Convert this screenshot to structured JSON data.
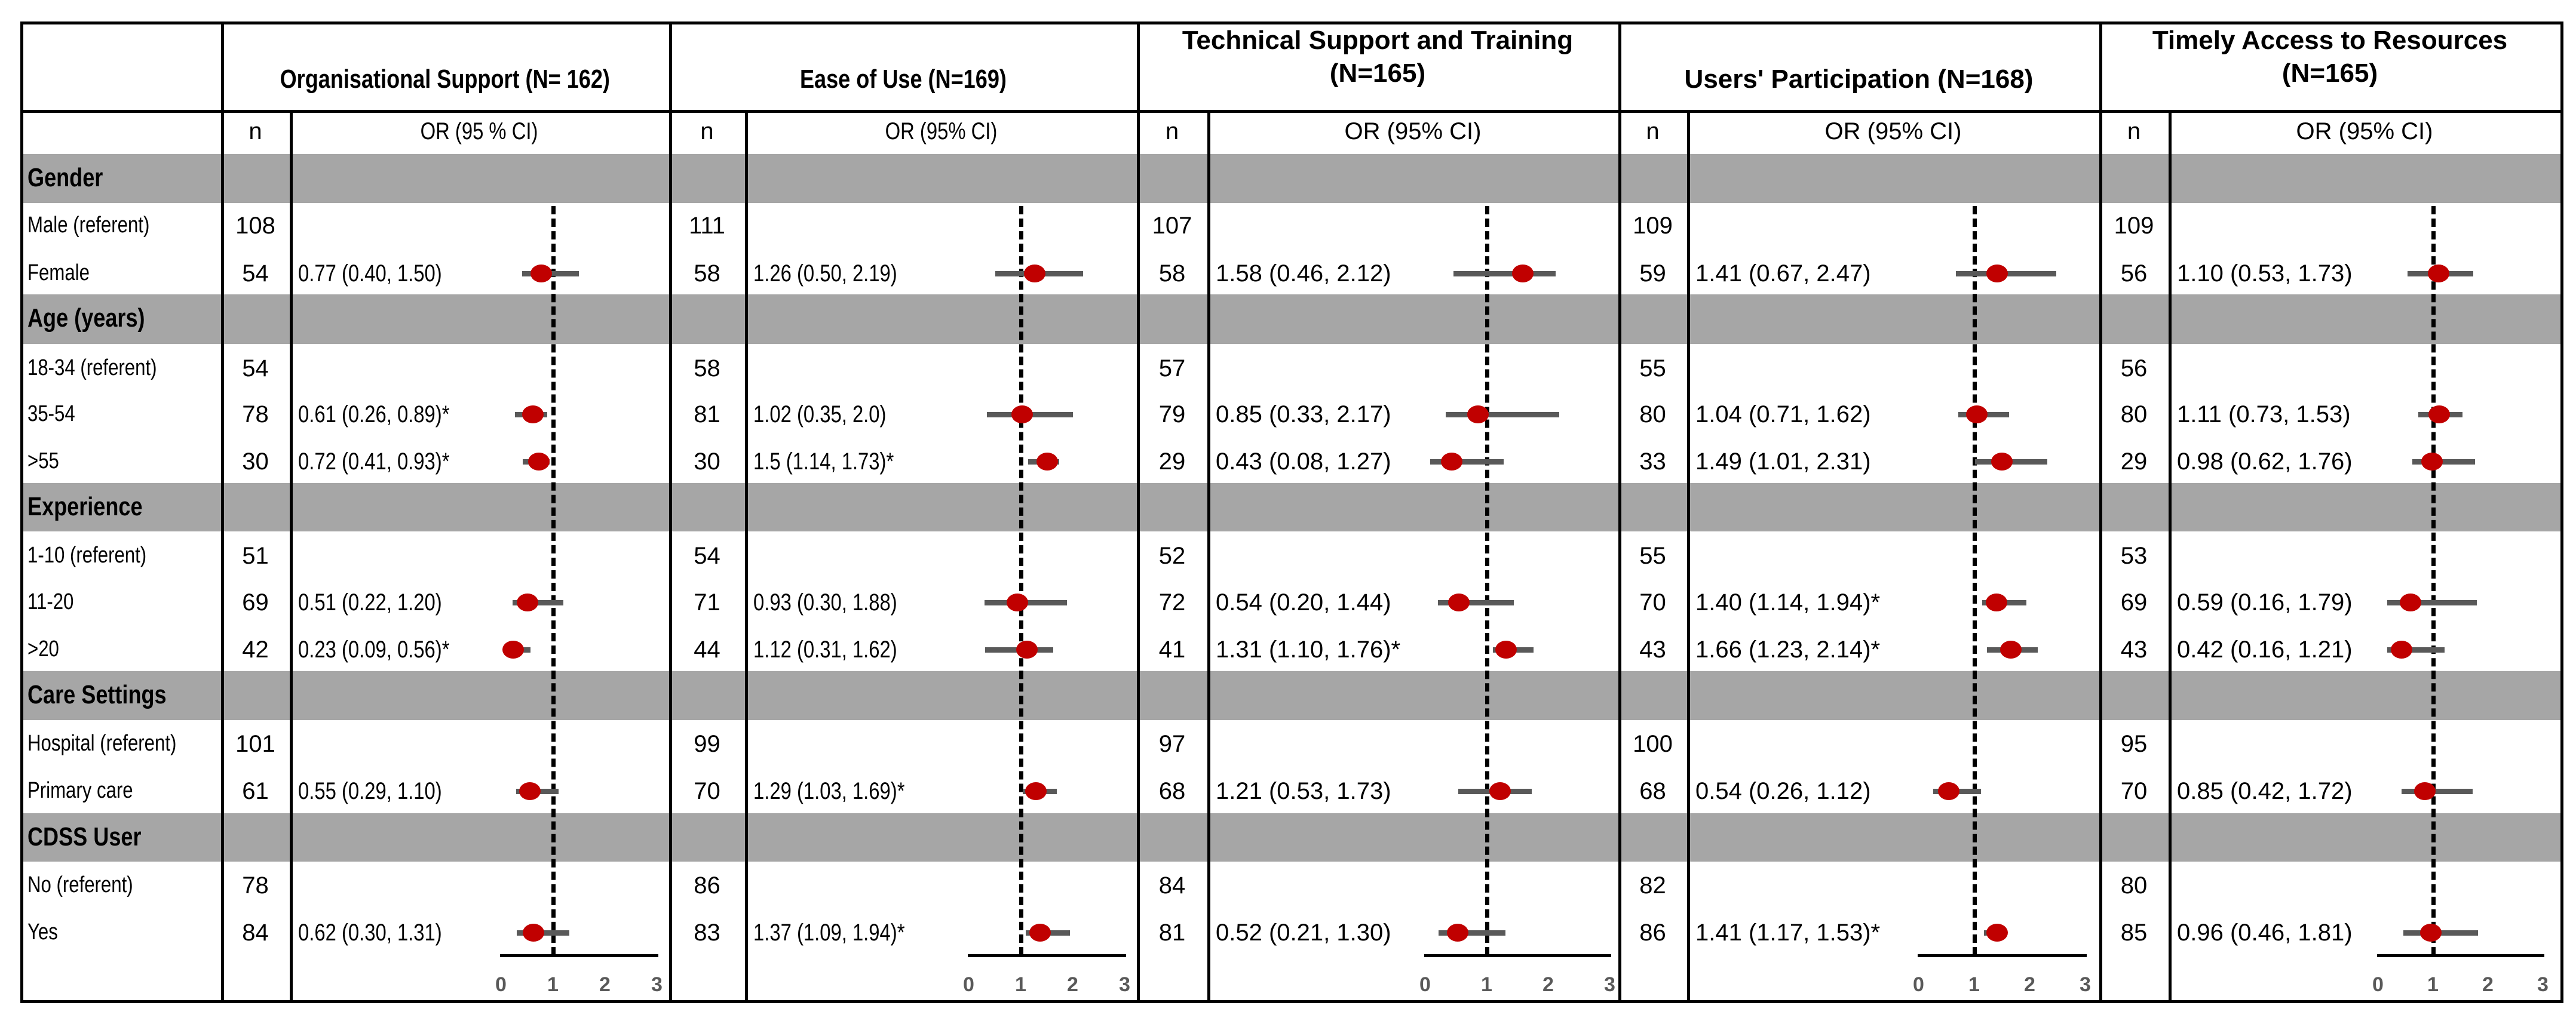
{
  "colors": {
    "band": "#A6A6A6",
    "point": "#C00000",
    "ci_line": "#595959",
    "reference_line": "#000000"
  },
  "row_groups": [
    {
      "label": "Gender",
      "rows": [
        "Male (referent)",
        "Female"
      ]
    },
    {
      "label": "Age (years)",
      "rows": [
        "18-34 (referent)",
        "35-54",
        ">55"
      ]
    },
    {
      "label": "Experience",
      "rows": [
        "1-10 (referent)",
        "11-20",
        ">20"
      ]
    },
    {
      "label": "Care Settings",
      "rows": [
        "Hospital (referent)",
        "Primary care"
      ]
    },
    {
      "label": "CDSS User",
      "rows": [
        "No (referent)",
        "Yes"
      ]
    }
  ],
  "chart_data": {
    "type": "forest",
    "xlim": [
      0,
      3
    ],
    "axis_ticks": [
      "0",
      "1",
      "2",
      "3"
    ],
    "reference_value": 1,
    "grid": false,
    "sections": [
      {
        "title": "Organisational Support (N= 162)",
        "n_header": "n",
        "or_header": "OR (95 % CI)",
        "rows": [
          {
            "n": "108"
          },
          {
            "n": "54",
            "text": "0.77 (0.40, 1.50)",
            "or": 0.77,
            "lo": 0.4,
            "hi": 1.5
          },
          {
            "n": "54"
          },
          {
            "n": "78",
            "text": "0.61 (0.26, 0.89)*",
            "or": 0.61,
            "lo": 0.26,
            "hi": 0.89
          },
          {
            "n": "30",
            "text": "0.72 (0.41, 0.93)*",
            "or": 0.72,
            "lo": 0.41,
            "hi": 0.93
          },
          {
            "n": "51"
          },
          {
            "n": "69",
            "text": "0.51 (0.22, 1.20)",
            "or": 0.51,
            "lo": 0.22,
            "hi": 1.2
          },
          {
            "n": "42",
            "text": "0.23 (0.09, 0.56)*",
            "or": 0.23,
            "lo": 0.09,
            "hi": 0.56
          },
          {
            "n": "101"
          },
          {
            "n": "61",
            "text": "0.55 (0.29, 1.10)",
            "or": 0.55,
            "lo": 0.29,
            "hi": 1.1
          },
          {
            "n": "78"
          },
          {
            "n": "84",
            "text": "0.62 (0.30, 1.31)",
            "or": 0.62,
            "lo": 0.3,
            "hi": 1.31
          }
        ]
      },
      {
        "title": "Ease of Use (N=169)",
        "n_header": "n",
        "or_header": "OR (95% CI)",
        "rows": [
          {
            "n": "111"
          },
          {
            "n": "58",
            "text": "1.26 (0.50, 2.19)",
            "or": 1.26,
            "lo": 0.5,
            "hi": 2.19
          },
          {
            "n": "58"
          },
          {
            "n": "81",
            "text": "1.02 (0.35, 2.0)",
            "or": 1.02,
            "lo": 0.35,
            "hi": 2.0
          },
          {
            "n": "30",
            "text": "1.5 (1.14, 1.73)*",
            "or": 1.5,
            "lo": 1.14,
            "hi": 1.73
          },
          {
            "n": "54"
          },
          {
            "n": "71",
            "text": "0.93 (0.30, 1.88)",
            "or": 0.93,
            "lo": 0.3,
            "hi": 1.88
          },
          {
            "n": "44",
            "text": "1.12 (0.31, 1.62)",
            "or": 1.12,
            "lo": 0.31,
            "hi": 1.62
          },
          {
            "n": "99"
          },
          {
            "n": "70",
            "text": "1.29 (1.03, 1.69)*",
            "or": 1.29,
            "lo": 1.03,
            "hi": 1.69
          },
          {
            "n": "86"
          },
          {
            "n": "83",
            "text": "1.37 (1.09, 1.94)*",
            "or": 1.37,
            "lo": 1.09,
            "hi": 1.94
          }
        ]
      },
      {
        "title": "Technical Support and Training\n(N=165)",
        "n_header": "n",
        "or_header": "OR (95% CI)",
        "rows": [
          {
            "n": "107"
          },
          {
            "n": "58",
            "text": "1.58 (0.46, 2.12)",
            "or": 1.58,
            "lo": 0.46,
            "hi": 2.12
          },
          {
            "n": "57"
          },
          {
            "n": "79",
            "text": "0.85 (0.33, 2.17)",
            "or": 0.85,
            "lo": 0.33,
            "hi": 2.17
          },
          {
            "n": "29",
            "text": "0.43 (0.08, 1.27)",
            "or": 0.43,
            "lo": 0.08,
            "hi": 1.27
          },
          {
            "n": "52"
          },
          {
            "n": "72",
            "text": "0.54 (0.20, 1.44)",
            "or": 0.54,
            "lo": 0.2,
            "hi": 1.44
          },
          {
            "n": "41",
            "text": "1.31 (1.10, 1.76)*",
            "or": 1.31,
            "lo": 1.1,
            "hi": 1.76
          },
          {
            "n": "97"
          },
          {
            "n": "68",
            "text": "1.21 (0.53, 1.73)",
            "or": 1.21,
            "lo": 0.53,
            "hi": 1.73
          },
          {
            "n": "84"
          },
          {
            "n": "81",
            "text": "0.52 (0.21, 1.30)",
            "or": 0.52,
            "lo": 0.21,
            "hi": 1.3
          }
        ]
      },
      {
        "title": "Users' Participation (N=168)",
        "n_header": "n",
        "or_header": "OR (95% CI)",
        "rows": [
          {
            "n": "109"
          },
          {
            "n": "59",
            "text": "1.41 (0.67, 2.47)",
            "or": 1.41,
            "lo": 0.67,
            "hi": 2.47
          },
          {
            "n": "55"
          },
          {
            "n": "80",
            "text": "1.04 (0.71, 1.62)",
            "or": 1.04,
            "lo": 0.71,
            "hi": 1.62
          },
          {
            "n": "33",
            "text": "1.49 (1.01, 2.31)",
            "or": 1.49,
            "lo": 1.01,
            "hi": 2.31
          },
          {
            "n": "55"
          },
          {
            "n": "70",
            "text": "1.40 (1.14, 1.94)*",
            "or": 1.4,
            "lo": 1.14,
            "hi": 1.94
          },
          {
            "n": "43",
            "text": "1.66 (1.23, 2.14)*",
            "or": 1.66,
            "lo": 1.23,
            "hi": 2.14
          },
          {
            "n": "100"
          },
          {
            "n": "68",
            "text": "0.54 (0.26, 1.12)",
            "or": 0.54,
            "lo": 0.26,
            "hi": 1.12
          },
          {
            "n": "82"
          },
          {
            "n": "86",
            "text": "1.41 (1.17, 1.53)*",
            "or": 1.41,
            "lo": 1.17,
            "hi": 1.53
          }
        ]
      },
      {
        "title": "Timely Access to Resources\n(N=165)",
        "n_header": "n",
        "or_header": "OR (95% CI)",
        "rows": [
          {
            "n": "109"
          },
          {
            "n": "56",
            "text": "1.10 (0.53, 1.73)",
            "or": 1.1,
            "lo": 0.53,
            "hi": 1.73
          },
          {
            "n": "56"
          },
          {
            "n": "80",
            "text": "1.11 (0.73, 1.53)",
            "or": 1.11,
            "lo": 0.73,
            "hi": 1.53
          },
          {
            "n": "29",
            "text": "0.98 (0.62, 1.76)",
            "or": 0.98,
            "lo": 0.62,
            "hi": 1.76
          },
          {
            "n": "53"
          },
          {
            "n": "69",
            "text": "0.59 (0.16, 1.79)",
            "or": 0.59,
            "lo": 0.16,
            "hi": 1.79
          },
          {
            "n": "43",
            "text": "0.42 (0.16, 1.21)",
            "or": 0.42,
            "lo": 0.16,
            "hi": 1.21
          },
          {
            "n": "95"
          },
          {
            "n": "70",
            "text": "0.85 (0.42, 1.72)",
            "or": 0.85,
            "lo": 0.42,
            "hi": 1.72
          },
          {
            "n": "80"
          },
          {
            "n": "85",
            "text": "0.96 (0.46, 1.81)",
            "or": 0.96,
            "lo": 0.46,
            "hi": 1.81
          }
        ]
      }
    ]
  }
}
